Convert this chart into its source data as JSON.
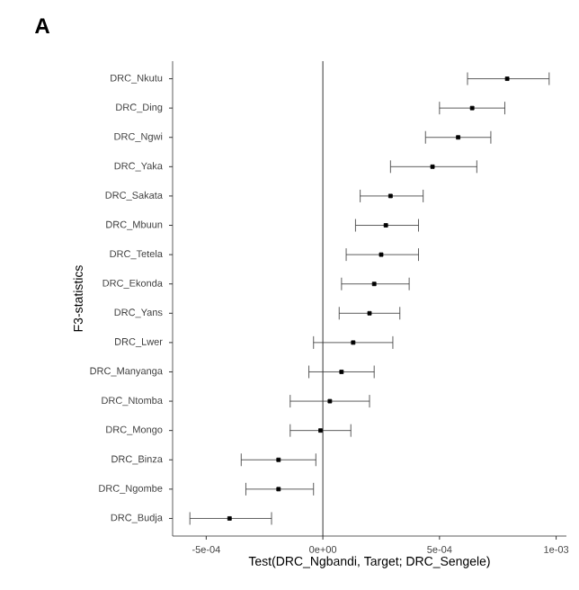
{
  "chart_data": {
    "type": "scatter",
    "title": "A",
    "xlabel": "Test(DRC_Ngbandi, Target; DRC_Sengele)",
    "ylabel": "F3-statistics",
    "orientation": "horizontal",
    "marker": "square",
    "color": "#000000",
    "categories": [
      "DRC_Nkutu",
      "DRC_Ding",
      "DRC_Ngwi",
      "DRC_Yaka",
      "DRC_Sakata",
      "DRC_Mbuun",
      "DRC_Tetela",
      "DRC_Ekonda",
      "DRC_Yans",
      "DRC_Lwer",
      "DRC_Manyanga",
      "DRC_Ntomba",
      "DRC_Mongo",
      "DRC_Binza",
      "DRC_Ngombe",
      "DRC_Budja"
    ],
    "values": [
      0.00079,
      0.00064,
      0.00058,
      0.00047,
      0.00029,
      0.00027,
      0.00025,
      0.00022,
      0.0002,
      0.00013,
      8e-05,
      3e-05,
      -1e-05,
      -0.00019,
      -0.00019,
      -0.0004
    ],
    "errors": [
      [
        0.00062,
        0.00097
      ],
      [
        0.0005,
        0.00078
      ],
      [
        0.00044,
        0.00072
      ],
      [
        0.00029,
        0.00066
      ],
      [
        0.00016,
        0.00043
      ],
      [
        0.00014,
        0.00041
      ],
      [
        0.0001,
        0.00041
      ],
      [
        8e-05,
        0.00037
      ],
      [
        7e-05,
        0.00033
      ],
      [
        -4e-05,
        0.0003
      ],
      [
        -6e-05,
        0.00022
      ],
      [
        -0.00014,
        0.0002
      ],
      [
        -0.00014,
        0.00012
      ],
      [
        -0.00035,
        -3e-05
      ],
      [
        -0.00033,
        -4e-05
      ],
      [
        -0.00057,
        -0.00022
      ]
    ],
    "xlim": [
      -0.000644,
      0.001044
    ],
    "xticks": [
      {
        "value": -0.0005,
        "label": "-5e-04"
      },
      {
        "value": 0,
        "label": "0e+00"
      },
      {
        "value": 0.0005,
        "label": "5e-04"
      },
      {
        "value": 0.001,
        "label": "1e-03"
      }
    ],
    "ref_lines": [
      {
        "axis": "x",
        "value": 0,
        "color": "#000000"
      }
    ],
    "grid": false
  }
}
